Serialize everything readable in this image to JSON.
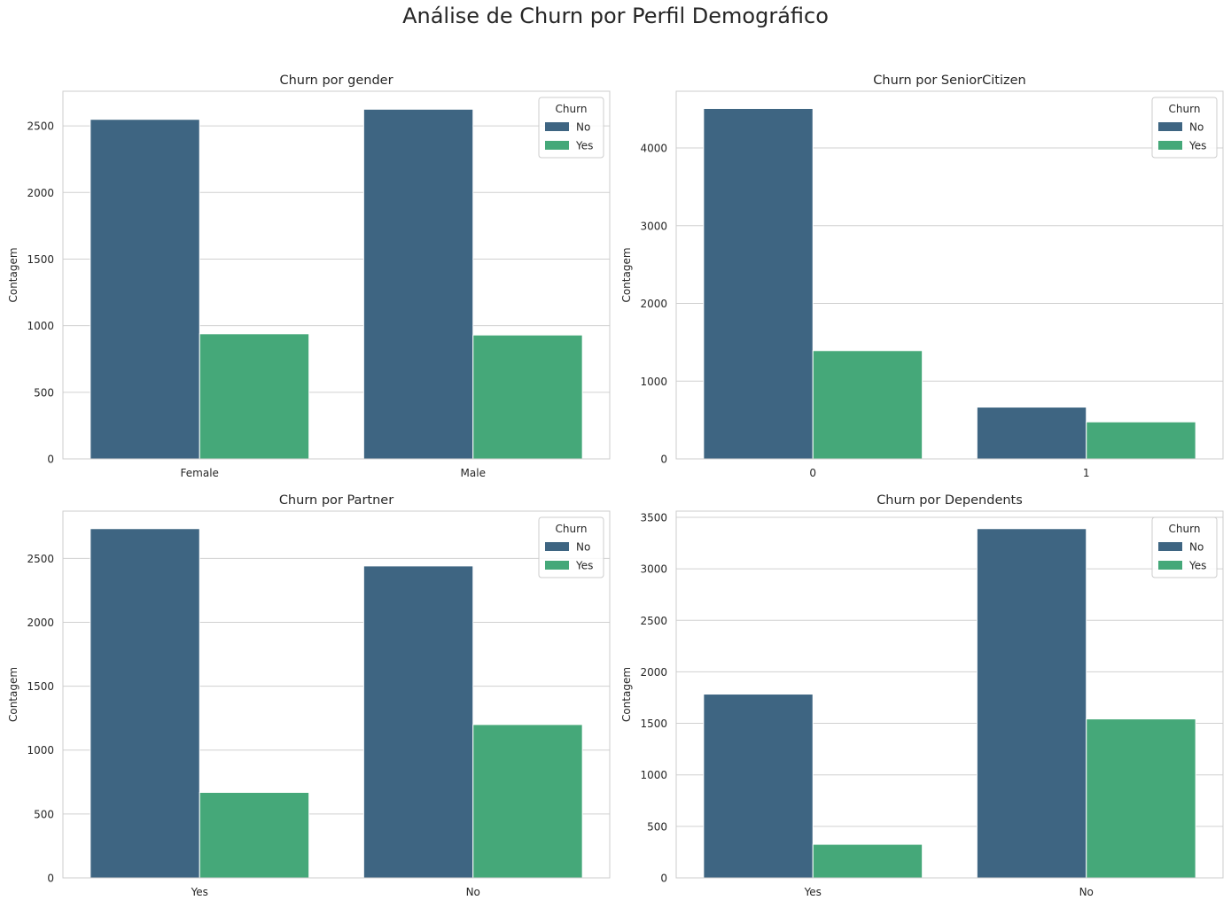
{
  "figure": {
    "title": "Análise de Churn por Perfil Demográfico"
  },
  "colors": {
    "No": "#3e6582",
    "Yes": "#45a879",
    "grid": "#d0d0d0",
    "frame": "#cccccc",
    "text": "#262626"
  },
  "chart_data": [
    {
      "type": "bar",
      "title": "Churn por gender",
      "xlabel": "",
      "ylabel": "Contagem",
      "categories": [
        "Female",
        "Male"
      ],
      "series": [
        {
          "name": "No",
          "values": [
            2549,
            2625
          ]
        },
        {
          "name": "Yes",
          "values": [
            939,
            930
          ]
        }
      ],
      "ylim": [
        0,
        2760
      ],
      "yticks": [
        0,
        500,
        1000,
        1500,
        2000,
        2500
      ],
      "legend": {
        "title": "Churn",
        "position": "top-right"
      },
      "grid": true
    },
    {
      "type": "bar",
      "title": "Churn por SeniorCitizen",
      "xlabel": "",
      "ylabel": "Contagem",
      "categories": [
        "0",
        "1"
      ],
      "series": [
        {
          "name": "No",
          "values": [
            4508,
            666
          ]
        },
        {
          "name": "Yes",
          "values": [
            1393,
            476
          ]
        }
      ],
      "ylim": [
        0,
        4730
      ],
      "yticks": [
        0,
        1000,
        2000,
        3000,
        4000
      ],
      "legend": {
        "title": "Churn",
        "position": "top-right"
      },
      "grid": true
    },
    {
      "type": "bar",
      "title": "Churn por Partner",
      "xlabel": "",
      "ylabel": "Contagem",
      "categories": [
        "Yes",
        "No"
      ],
      "series": [
        {
          "name": "No",
          "values": [
            2733,
            2441
          ]
        },
        {
          "name": "Yes",
          "values": [
            669,
            1200
          ]
        }
      ],
      "ylim": [
        0,
        2870
      ],
      "yticks": [
        0,
        500,
        1000,
        1500,
        2000,
        2500
      ],
      "legend": {
        "title": "Churn",
        "position": "top-right"
      },
      "grid": true
    },
    {
      "type": "bar",
      "title": "Churn por Dependents",
      "xlabel": "",
      "ylabel": "Contagem",
      "categories": [
        "Yes",
        "No"
      ],
      "series": [
        {
          "name": "No",
          "values": [
            1784,
            3390
          ]
        },
        {
          "name": "Yes",
          "values": [
            326,
            1543
          ]
        }
      ],
      "ylim": [
        0,
        3560
      ],
      "yticks": [
        0,
        500,
        1000,
        1500,
        2000,
        2500,
        3000,
        3500
      ],
      "legend": {
        "title": "Churn",
        "position": "top-right"
      },
      "grid": true
    }
  ]
}
